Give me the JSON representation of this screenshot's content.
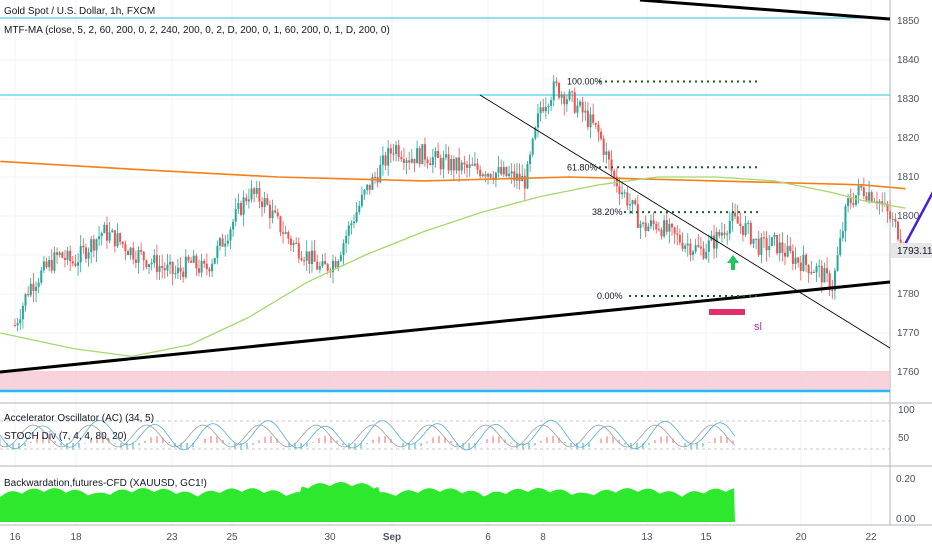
{
  "header": {
    "symbol_title": "Gold Spot / U.S. Dollar, 1h, FXCM",
    "indicator": "MTF-MA (close, 5, 2, 60, 200, 0, 2, 240, 200, 0, 2, D, 200, 0, 1, 60, 200, 0, 1, D, 200, 0)"
  },
  "colors": {
    "up_candle": "#26a69a",
    "down_candle": "#ef5350",
    "ma_orange": "#f57f17",
    "ma_green": "#a5d86e",
    "trendline": "#000000",
    "horizontal_cyan": "#4dd0e1",
    "forecast_arrow": "#4a1fd8",
    "entry_arrow": "#22c55e",
    "sl_box": "#e0306b",
    "support_zone": "#f8c8d2",
    "fib_dots": "#1b5e20",
    "volume_green": "#2ee82e"
  },
  "chart_data": [
    {
      "type": "line",
      "panel": "price",
      "title": "Gold Spot / U.S. Dollar, 1h, FXCM",
      "y_ticks": [
        1760,
        1770,
        1780,
        1790,
        1800,
        1810,
        1820,
        1830,
        1840,
        1850
      ],
      "ylim": [
        1755,
        1858
      ],
      "x_ticks": [
        "16",
        "18",
        "23",
        "25",
        "30",
        "Sep",
        "6",
        "8",
        "13",
        "15",
        "20",
        "22"
      ],
      "price_tag": "1793.11",
      "price_path": {
        "x": [
          16.0,
          16.5,
          17.0,
          17.5,
          18.0,
          18.5,
          19.0,
          19.5,
          20.0,
          20.5,
          21.0,
          21.5,
          22.0,
          22.5,
          23.0,
          23.5,
          24.0,
          24.5,
          25.0,
          25.5,
          26.0,
          26.5,
          27.0,
          27.5,
          28.0,
          28.5,
          29.0,
          29.5,
          30.0,
          30.5,
          31.0,
          31.5,
          32.0,
          32.5,
          33.0,
          33.5,
          34.0,
          34.5,
          35.0,
          35.5,
          36.0,
          36.5,
          37.0,
          37.5,
          38.0,
          38.5,
          39.0,
          39.5,
          40.0,
          40.5,
          41.0,
          41.5,
          42.0,
          42.5,
          43.0,
          43.5,
          44.0,
          44.5,
          45.0,
          45.5,
          46.0,
          46.5
        ],
        "y": [
          1772,
          1782,
          1786,
          1790,
          1788,
          1792,
          1796,
          1794,
          1791,
          1789,
          1787,
          1785,
          1788,
          1786,
          1792,
          1799,
          1806,
          1804,
          1798,
          1793,
          1790,
          1786,
          1789,
          1798,
          1806,
          1812,
          1818,
          1815,
          1816,
          1814,
          1813,
          1812,
          1812,
          1811,
          1810,
          1809,
          1828,
          1833,
          1830,
          1826,
          1821,
          1810,
          1804,
          1797,
          1798,
          1795,
          1793,
          1791,
          1794,
          1799,
          1797,
          1792,
          1793,
          1790,
          1788,
          1786,
          1782,
          1803,
          1807,
          1805,
          1799,
          1793
        ]
      },
      "ma_orange": {
        "x": [
          15.5,
          20.0,
          25.0,
          30.0,
          35.0,
          40.0,
          45.0,
          46.5
        ],
        "y": [
          1814,
          1812,
          1810,
          1809,
          1810,
          1809,
          1808,
          1807
        ]
      },
      "ma_green": {
        "x": [
          15.5,
          18.0,
          20.0,
          22.0,
          24.0,
          26.0,
          28.0,
          30.0,
          32.0,
          34.0,
          36.0,
          38.0,
          40.0,
          42.0,
          44.0,
          45.0,
          46.5
        ],
        "y": [
          1770,
          1766,
          1764,
          1767,
          1774,
          1783,
          1790,
          1796,
          1801,
          1805,
          1808,
          1810,
          1810,
          1809,
          1806,
          1804,
          1802
        ]
      },
      "annotations": {
        "fib_levels": [
          {
            "label": "100.00%",
            "price": 1834.5
          },
          {
            "label": "61.80%",
            "price": 1812.5
          },
          {
            "label": "38.20%",
            "price": 1801
          },
          {
            "label": "0.00%",
            "price": 1779.5
          }
        ],
        "sl_label": "sl",
        "forecast_path": {
          "x": [
            46.5,
            47.5,
            48.4,
            50.2,
            50.4
          ],
          "y": [
            1793,
            1807,
            1813,
            1851,
            1847
          ]
        }
      }
    },
    {
      "type": "line",
      "panel": "oscillator",
      "legend": [
        "Accelerator Oscillator (AC) (34, 5)",
        "STOCH Div (7, 4, 4, 80, 20)"
      ],
      "y_ticks": [
        50,
        100
      ],
      "ylim": [
        0,
        100
      ]
    },
    {
      "type": "area",
      "panel": "futures",
      "legend": [
        "Backwardation,futures-CFD (XAUUSD, GC1!)"
      ],
      "y_ticks": [
        "0.00",
        "0.20"
      ],
      "ylim": [
        0,
        0.22
      ]
    }
  ]
}
